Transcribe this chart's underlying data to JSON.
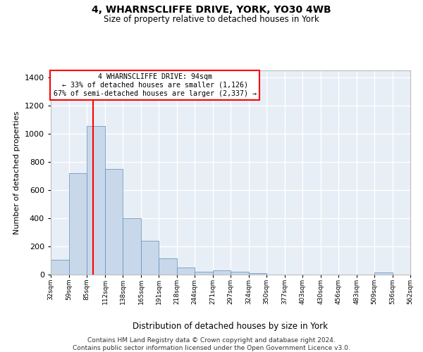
{
  "title1": "4, WHARNSCLIFFE DRIVE, YORK, YO30 4WB",
  "title2": "Size of property relative to detached houses in York",
  "xlabel": "Distribution of detached houses by size in York",
  "ylabel": "Number of detached properties",
  "bar_color": "#c8d8ea",
  "bar_edge_color": "#5b8db8",
  "background_color": "#e8eef6",
  "grid_color": "#ffffff",
  "annotation_text": "4 WHARNSCLIFFE DRIVE: 94sqm\n← 33% of detached houses are smaller (1,126)\n67% of semi-detached houses are larger (2,337) →",
  "vline_x": 94,
  "vline_color": "red",
  "bin_edges": [
    32,
    59,
    85,
    112,
    138,
    165,
    191,
    218,
    244,
    271,
    297,
    324,
    350,
    377,
    403,
    430,
    456,
    483,
    509,
    536,
    562
  ],
  "bar_heights": [
    105,
    720,
    1055,
    750,
    400,
    240,
    113,
    50,
    22,
    32,
    22,
    12,
    0,
    0,
    0,
    0,
    0,
    0,
    13,
    0
  ],
  "ylim": [
    0,
    1450
  ],
  "yticks": [
    0,
    200,
    400,
    600,
    800,
    1000,
    1200,
    1400
  ],
  "footer1": "Contains HM Land Registry data © Crown copyright and database right 2024.",
  "footer2": "Contains public sector information licensed under the Open Government Licence v3.0."
}
